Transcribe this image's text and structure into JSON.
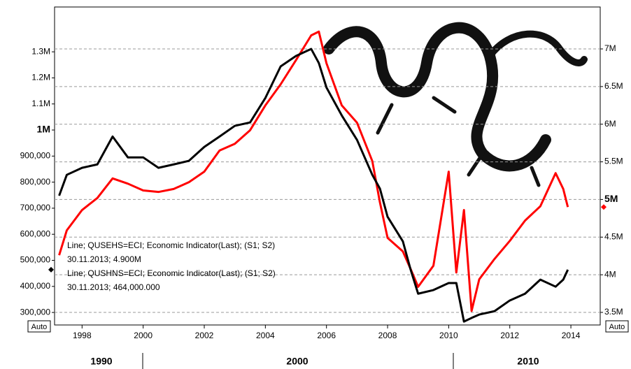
{
  "chart_data": {
    "type": "line",
    "x": [
      1997.25,
      1997.5,
      1998,
      1998.5,
      1999,
      1999.5,
      2000,
      2000.5,
      2001,
      2001.5,
      2002,
      2002.5,
      2003,
      2003.5,
      2004,
      2004.5,
      2005,
      2005.5,
      2005.75,
      2006,
      2006.5,
      2007,
      2007.5,
      2007.75,
      2008,
      2008.5,
      2008.75,
      2009,
      2009.5,
      2010,
      2010.25,
      2010.5,
      2010.75,
      2011,
      2011.5,
      2012,
      2012.5,
      2013,
      2013.5,
      2013.75,
      2013.9
    ],
    "series": [
      {
        "name": "Line; QUSEHS=ECI; Economic Indicator(Last); (S1; S2)",
        "color": "#ff0000",
        "axis": "y2",
        "values": [
          4260000,
          4590000,
          4860000,
          5020000,
          5280000,
          5210000,
          5120000,
          5100000,
          5140000,
          5230000,
          5370000,
          5650000,
          5740000,
          5920000,
          6250000,
          6530000,
          6850000,
          7180000,
          7230000,
          6810000,
          6250000,
          6020000,
          5510000,
          4960000,
          4490000,
          4310000,
          4080000,
          3840000,
          4120000,
          5370000,
          4030000,
          4860000,
          3520000,
          3940000,
          4210000,
          4450000,
          4720000,
          4910000,
          5350000,
          5140000,
          4900000
        ],
        "last_label": "30.11.2013; 4.900M"
      },
      {
        "name": "Line; QUSHNS=ECI; Economic Indicator(Last); (S1; S2)",
        "color": "#000000",
        "axis": "y",
        "values": [
          748000,
          828000,
          855000,
          868000,
          975000,
          895000,
          895000,
          855000,
          868000,
          882000,
          935000,
          975000,
          1016000,
          1029000,
          1123000,
          1244000,
          1284000,
          1311000,
          1257000,
          1163000,
          1056000,
          962000,
          828000,
          775000,
          667000,
          573000,
          466000,
          372000,
          386000,
          413000,
          413000,
          265000,
          279000,
          292000,
          305000,
          346000,
          372000,
          426000,
          399000,
          426000,
          464000
        ],
        "last_label": "30.11.2013; 464,000.000"
      }
    ],
    "xlim": [
      1997.1,
      2014.96
    ],
    "xticks": [
      1998,
      2000,
      2002,
      2004,
      2006,
      2008,
      2010,
      2012,
      2014
    ],
    "decade_labels": [
      "1990",
      "2000",
      "2010"
    ],
    "ylim": [
      252000,
      1472000
    ],
    "yticks": [
      {
        "value": 300000,
        "label": "300,000"
      },
      {
        "value": 400000,
        "label": "400,000"
      },
      {
        "value": 500000,
        "label": "500,000"
      },
      {
        "value": 600000,
        "label": "600,000"
      },
      {
        "value": 700000,
        "label": "700,000"
      },
      {
        "value": 800000,
        "label": "800,000"
      },
      {
        "value": 900000,
        "label": "900,000"
      },
      {
        "value": 1000000,
        "label": "1M",
        "bold": true
      },
      {
        "value": 1100000,
        "label": "1.1M"
      },
      {
        "value": 1200000,
        "label": "1.2M"
      },
      {
        "value": 1300000,
        "label": "1.3M"
      }
    ],
    "y2lim": [
      3333000,
      7557000
    ],
    "y2ticks": [
      {
        "value": 3500000,
        "label": "3.5M"
      },
      {
        "value": 4000000,
        "label": "4M"
      },
      {
        "value": 4500000,
        "label": "4.5M"
      },
      {
        "value": 5000000,
        "label": "5M",
        "bold": true
      },
      {
        "value": 5500000,
        "label": "5.5M"
      },
      {
        "value": 6000000,
        "label": "6M"
      },
      {
        "value": 6500000,
        "label": "6.5M"
      },
      {
        "value": 7000000,
        "label": "7M"
      }
    ],
    "grid": true,
    "axis_buttons": [
      "Auto",
      "Auto"
    ]
  }
}
